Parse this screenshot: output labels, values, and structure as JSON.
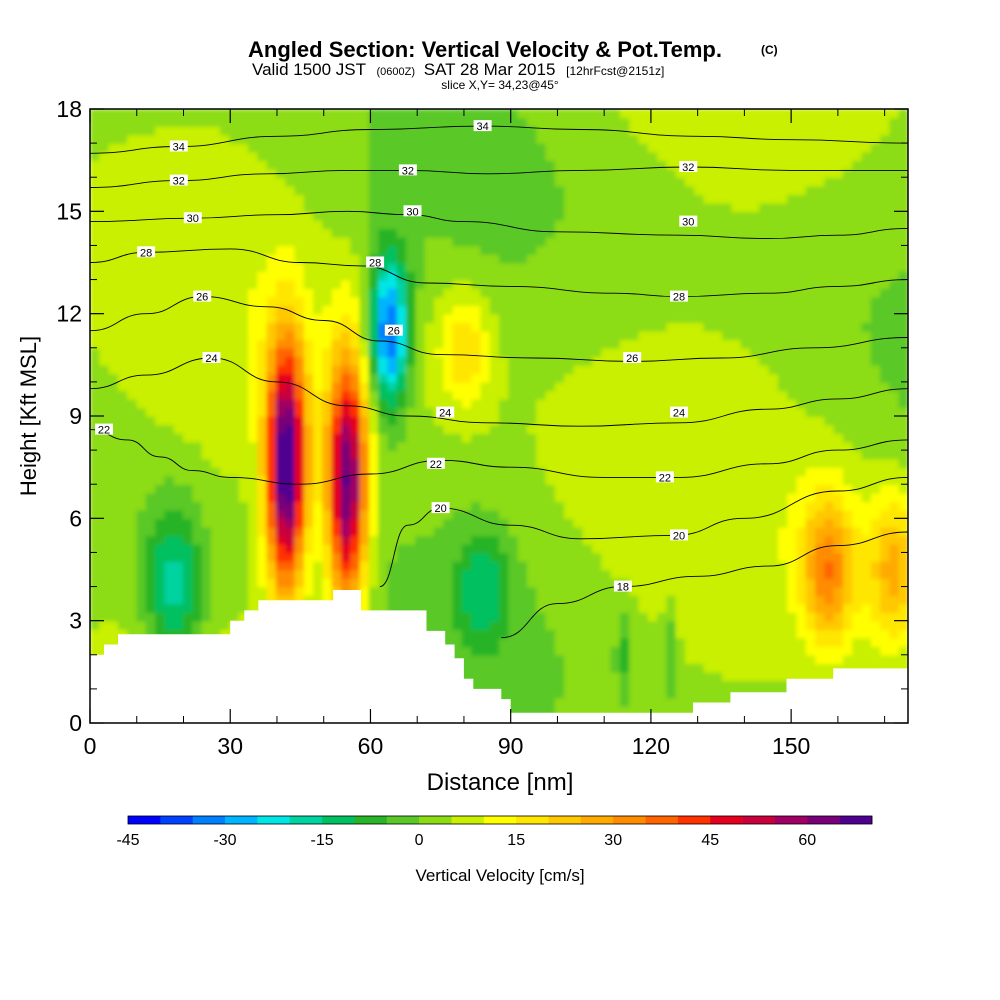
{
  "header": {
    "title_main": "Angled Section: Vertical Velocity & Pot.Temp.",
    "title_unit": "(C)",
    "valid_a": "Valid 1500 JST",
    "valid_b": "(0600Z)",
    "valid_c": "SAT 28 Mar 2015",
    "valid_d": "[12hrFcst@2151z]",
    "slice": "slice X,Y= 34,23@45°"
  },
  "chart_data": {
    "type": "heatmap",
    "xlabel": "Distance [nm]",
    "ylabel": "Height [Kft MSL]",
    "xlim": [
      0,
      175
    ],
    "ylim": [
      0,
      18
    ],
    "x_ticks": [
      0,
      30,
      60,
      90,
      120,
      150
    ],
    "y_ticks": [
      0,
      3,
      6,
      9,
      12,
      15,
      18
    ],
    "colorbar": {
      "label": "Vertical Velocity [cm/s]",
      "min": -45,
      "max": 70,
      "step": 5,
      "tick_values": [
        -45,
        -30,
        -15,
        0,
        15,
        30,
        45,
        60
      ],
      "colors": [
        "#0000ff",
        "#0040ff",
        "#0080ff",
        "#00b4ff",
        "#00e6e6",
        "#00d2a0",
        "#00c060",
        "#28b428",
        "#5ac828",
        "#8cdc14",
        "#c8f000",
        "#ffff00",
        "#ffe600",
        "#ffc800",
        "#ffaa00",
        "#ff8c00",
        "#ff6400",
        "#ff3200",
        "#e6001e",
        "#c8003c",
        "#a00064",
        "#780078",
        "#500090"
      ]
    },
    "features": [
      {
        "type": "updraft",
        "x": 42,
        "y": 7.5,
        "peak": 68
      },
      {
        "type": "updraft",
        "x": 55,
        "y": 7.0,
        "peak": 62
      },
      {
        "type": "updraft",
        "x": 80,
        "y": 11.0,
        "peak": 16
      },
      {
        "type": "updraft",
        "x": 158,
        "y": 4.5,
        "peak": 28
      },
      {
        "type": "updraft",
        "x": 172,
        "y": 4.5,
        "peak": 22
      },
      {
        "type": "downdraft",
        "x": 64,
        "y": 11.5,
        "peak": -40
      },
      {
        "type": "downdraft",
        "x": 18,
        "y": 4.0,
        "peak": -22
      },
      {
        "type": "downdraft",
        "x": 84,
        "y": 4.0,
        "peak": -14
      },
      {
        "type": "downdraft",
        "x": 114,
        "y": 2.0,
        "peak": -10
      },
      {
        "type": "downdraft",
        "x": 124,
        "y": 2.0,
        "peak": -10
      }
    ],
    "terrain": [
      [
        0,
        2.0
      ],
      [
        3,
        2.0
      ],
      [
        3,
        2.3
      ],
      [
        6,
        2.3
      ],
      [
        6,
        2.6
      ],
      [
        30,
        2.6
      ],
      [
        30,
        3.0
      ],
      [
        33,
        3.0
      ],
      [
        33,
        3.3
      ],
      [
        36,
        3.3
      ],
      [
        36,
        3.6
      ],
      [
        52,
        3.6
      ],
      [
        52,
        3.9
      ],
      [
        58,
        3.9
      ],
      [
        58,
        3.3
      ],
      [
        72,
        3.3
      ],
      [
        72,
        2.7
      ],
      [
        76,
        2.7
      ],
      [
        76,
        2.3
      ],
      [
        78,
        2.3
      ],
      [
        78,
        1.9
      ],
      [
        80,
        1.9
      ],
      [
        80,
        1.3
      ],
      [
        82,
        1.3
      ],
      [
        82,
        1.0
      ],
      [
        88,
        1.0
      ],
      [
        88,
        0.7
      ],
      [
        90,
        0.7
      ],
      [
        90,
        0.3
      ],
      [
        129,
        0.3
      ],
      [
        129,
        0.6
      ],
      [
        137,
        0.6
      ],
      [
        137,
        0.9
      ],
      [
        149,
        0.9
      ],
      [
        149,
        1.3
      ],
      [
        159,
        1.3
      ],
      [
        159,
        1.6
      ],
      [
        175,
        1.6
      ]
    ],
    "theta_contours": [
      {
        "label": "18",
        "label_at": [
          114,
          4.0
        ],
        "points": [
          [
            88,
            2.5
          ],
          [
            100,
            3.5
          ],
          [
            114,
            4.0
          ],
          [
            130,
            4.3
          ],
          [
            145,
            4.6
          ],
          [
            160,
            5.2
          ],
          [
            175,
            5.6
          ]
        ]
      },
      {
        "label": "20",
        "label_at": [
          75,
          6.3
        ],
        "points": [
          [
            62,
            4.0
          ],
          [
            68,
            5.8
          ],
          [
            75,
            6.3
          ],
          [
            90,
            5.8
          ],
          [
            105,
            5.4
          ],
          [
            125,
            5.5
          ],
          [
            140,
            6.0
          ],
          [
            160,
            6.8
          ],
          [
            175,
            7.2
          ]
        ]
      },
      {
        "label": "22",
        "label_at": [
          3,
          8.6
        ],
        "points": [
          [
            0,
            8.6
          ],
          [
            8,
            8.3
          ],
          [
            15,
            7.8
          ],
          [
            22,
            7.4
          ],
          [
            30,
            7.2
          ],
          [
            45,
            7.0
          ],
          [
            60,
            7.3
          ],
          [
            75,
            7.7
          ],
          [
            90,
            7.5
          ],
          [
            110,
            7.2
          ],
          [
            126,
            7.2
          ],
          [
            145,
            7.6
          ],
          [
            160,
            8.0
          ],
          [
            175,
            8.3
          ]
        ]
      },
      {
        "label": "24",
        "label_at": [
          26,
          10.7
        ],
        "points": [
          [
            0,
            9.8
          ],
          [
            12,
            10.2
          ],
          [
            26,
            10.7
          ],
          [
            40,
            10.0
          ],
          [
            55,
            9.3
          ],
          [
            68,
            9.0
          ],
          [
            85,
            8.8
          ],
          [
            105,
            8.7
          ],
          [
            126,
            8.8
          ],
          [
            145,
            9.2
          ],
          [
            160,
            9.5
          ],
          [
            175,
            9.8
          ]
        ]
      },
      {
        "label": "26",
        "label_at": [
          24,
          12.5
        ],
        "points": [
          [
            0,
            11.5
          ],
          [
            12,
            12.0
          ],
          [
            24,
            12.5
          ],
          [
            38,
            12.2
          ],
          [
            50,
            11.8
          ],
          [
            62,
            11.2
          ],
          [
            75,
            10.8
          ],
          [
            95,
            10.7
          ],
          [
            116,
            10.6
          ],
          [
            135,
            10.7
          ],
          [
            155,
            11.0
          ],
          [
            175,
            11.3
          ]
        ]
      },
      {
        "label": "28",
        "label_at": [
          12,
          13.8
        ],
        "points": [
          [
            0,
            13.5
          ],
          [
            12,
            13.8
          ],
          [
            30,
            13.9
          ],
          [
            45,
            13.5
          ],
          [
            58,
            13.4
          ],
          [
            72,
            12.9
          ],
          [
            90,
            12.8
          ],
          [
            112,
            12.6
          ],
          [
            126,
            12.5
          ],
          [
            145,
            12.6
          ],
          [
            160,
            12.8
          ],
          [
            175,
            13.0
          ]
        ]
      },
      {
        "label": "30",
        "label_at": [
          22,
          14.8
        ],
        "points": [
          [
            0,
            14.7
          ],
          [
            22,
            14.8
          ],
          [
            40,
            14.9
          ],
          [
            55,
            15.0
          ],
          [
            68,
            14.9
          ],
          [
            80,
            14.7
          ],
          [
            100,
            14.4
          ],
          [
            126,
            14.3
          ],
          [
            145,
            14.2
          ],
          [
            160,
            14.3
          ],
          [
            175,
            14.5
          ]
        ]
      },
      {
        "label": "32",
        "label_at": [
          19,
          15.9
        ],
        "points": [
          [
            0,
            15.7
          ],
          [
            19,
            15.9
          ],
          [
            38,
            16.1
          ],
          [
            55,
            16.2
          ],
          [
            68,
            16.2
          ],
          [
            85,
            16.1
          ],
          [
            105,
            16.2
          ],
          [
            128,
            16.3
          ],
          [
            150,
            16.2
          ],
          [
            175,
            16.2
          ]
        ]
      },
      {
        "label": "34",
        "label_at": [
          19,
          16.9
        ],
        "points": [
          [
            0,
            16.7
          ],
          [
            19,
            16.9
          ],
          [
            40,
            17.2
          ],
          [
            60,
            17.4
          ],
          [
            84,
            17.5
          ],
          [
            105,
            17.4
          ],
          [
            130,
            17.2
          ],
          [
            150,
            17.1
          ],
          [
            175,
            17.0
          ]
        ]
      }
    ],
    "extra_labels": [
      {
        "label": "32",
        "at": [
          68,
          16.2
        ]
      },
      {
        "label": "32",
        "at": [
          128,
          16.3
        ]
      },
      {
        "label": "34",
        "at": [
          84,
          17.5
        ]
      },
      {
        "label": "30",
        "at": [
          69,
          15.0
        ]
      },
      {
        "label": "30",
        "at": [
          128,
          14.7
        ]
      },
      {
        "label": "28",
        "at": [
          61,
          13.5
        ]
      },
      {
        "label": "28",
        "at": [
          126,
          12.5
        ]
      },
      {
        "label": "26",
        "at": [
          65,
          11.5
        ]
      },
      {
        "label": "26",
        "at": [
          116,
          10.7
        ]
      },
      {
        "label": "24",
        "at": [
          76,
          9.1
        ]
      },
      {
        "label": "24",
        "at": [
          126,
          9.1
        ]
      },
      {
        "label": "22",
        "at": [
          74,
          7.6
        ]
      },
      {
        "label": "22",
        "at": [
          123,
          7.2
        ]
      },
      {
        "label": "20",
        "at": [
          126,
          5.5
        ]
      }
    ]
  }
}
